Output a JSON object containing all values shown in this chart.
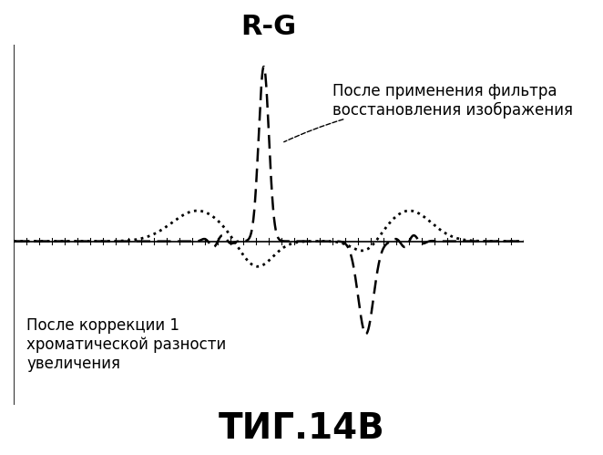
{
  "title": "R-G",
  "title_fontsize": 22,
  "fig_caption": "ΤИГ.14B",
  "fig_caption_fontsize": 28,
  "annotation1": "После применения фильтра\nвосстановления изображения",
  "annotation2": "После коррекции 1\nхроматической разности\nувеличения",
  "annotation1_fontsize": 12,
  "annotation2_fontsize": 12,
  "background_color": "#ffffff",
  "line_color": "#000000",
  "xlim": [
    -100,
    100
  ],
  "ylim": [
    -1.5,
    1.8
  ]
}
